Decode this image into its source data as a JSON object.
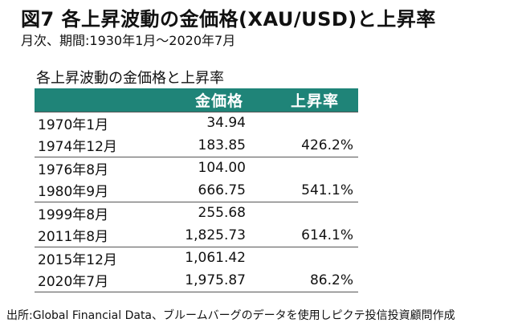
{
  "title": "図7  各上昇波動の金価格(XAU/USD)と上昇率",
  "subtitle": "月次、期間:1930年1月〜2020年7月",
  "table": {
    "title": "各上昇波動の金価格と上昇率",
    "header_color": "#1f8478",
    "columns": [
      "",
      "金価格",
      "上昇率"
    ],
    "groups": [
      {
        "rows": [
          {
            "date": "1970年1月",
            "price": "34.94",
            "rate": ""
          },
          {
            "date": "1974年12月",
            "price": "183.85",
            "rate": "426.2%"
          }
        ]
      },
      {
        "rows": [
          {
            "date": "1976年8月",
            "price": "104.00",
            "rate": ""
          },
          {
            "date": "1980年9月",
            "price": "666.75",
            "rate": "541.1%"
          }
        ]
      },
      {
        "rows": [
          {
            "date": "1999年8月",
            "price": "255.68",
            "rate": ""
          },
          {
            "date": "2011年8月",
            "price": "1,825.73",
            "rate": "614.1%"
          }
        ]
      },
      {
        "rows": [
          {
            "date": "2015年12月",
            "price": "1,061.42",
            "rate": ""
          },
          {
            "date": "2020年7月",
            "price": "1,975.87",
            "rate": "86.2%"
          }
        ]
      }
    ]
  },
  "source": "出所:Global Financial Data、ブルームバーグのデータを使用しピクテ投信投資顧問作成"
}
